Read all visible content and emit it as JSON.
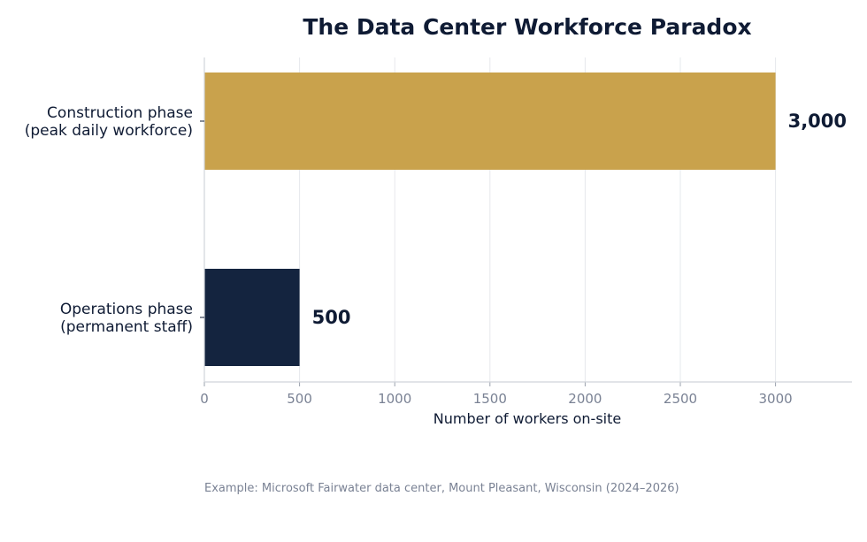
{
  "chart_data": {
    "type": "bar",
    "orientation": "horizontal",
    "title": "The Data Center Workforce Paradox",
    "xlabel": "Number of workers on-site",
    "ylabel": "",
    "xlim": [
      0,
      3400
    ],
    "x_ticks": [
      0,
      500,
      1000,
      1500,
      2000,
      2500,
      3000
    ],
    "grid": "vertical",
    "categories": [
      [
        "Construction phase",
        "(peak daily workforce)"
      ],
      [
        "Operations phase",
        "(permanent staff)"
      ]
    ],
    "values": [
      3000,
      500
    ],
    "value_labels": [
      "3,000",
      "500"
    ],
    "colors": [
      "#c9a24c",
      "#14243f"
    ],
    "footnote": "Example: Microsoft Fairwater data center, Mount Pleasant, Wisconsin (2024–2026)"
  }
}
